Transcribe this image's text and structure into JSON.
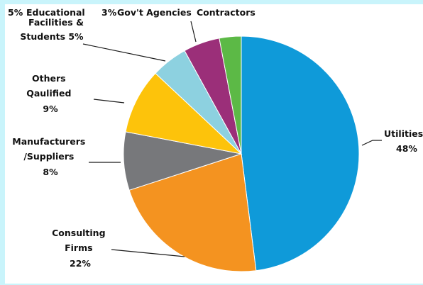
{
  "chart_data": {
    "type": "pie",
    "title": "",
    "slices": [
      {
        "label": "Utilities",
        "value": 48,
        "pct_text": "48%",
        "color": "#0f9ad9"
      },
      {
        "label": "Consulting Firms",
        "value": 22,
        "pct_text": "22%",
        "color": "#f49320"
      },
      {
        "label": "Manufacturers /Suppliers",
        "value": 8,
        "pct_text": "8%",
        "color": "#77787b"
      },
      {
        "label": "Others Qaulified",
        "value": 9,
        "pct_text": "9%",
        "color": "#fdc30b"
      },
      {
        "label": "Educational Facilities & Students",
        "value": 5,
        "pct_text": "5%",
        "color": "#8dd1e0"
      },
      {
        "label": "Gov't Agencies",
        "value": 5,
        "pct_text": "5%",
        "color": "#9b2f79"
      },
      {
        "label": "Contractors",
        "value": 3,
        "pct_text": "3%",
        "color": "#5cb946"
      }
    ],
    "labels": {
      "utilities": [
        "Utilities",
        "48%"
      ],
      "consulting": [
        "Consulting",
        "Firms",
        "22%"
      ],
      "manufacturers": [
        "Manufacturers",
        "/Suppliers",
        "8%"
      ],
      "others": [
        "Others",
        "Qaulified",
        "9%"
      ],
      "educational": [
        "5%",
        "Educational",
        "Facilities &",
        "Students 5%"
      ],
      "top": [
        "3%",
        "Gov't Agencies",
        "Contractors"
      ]
    }
  }
}
